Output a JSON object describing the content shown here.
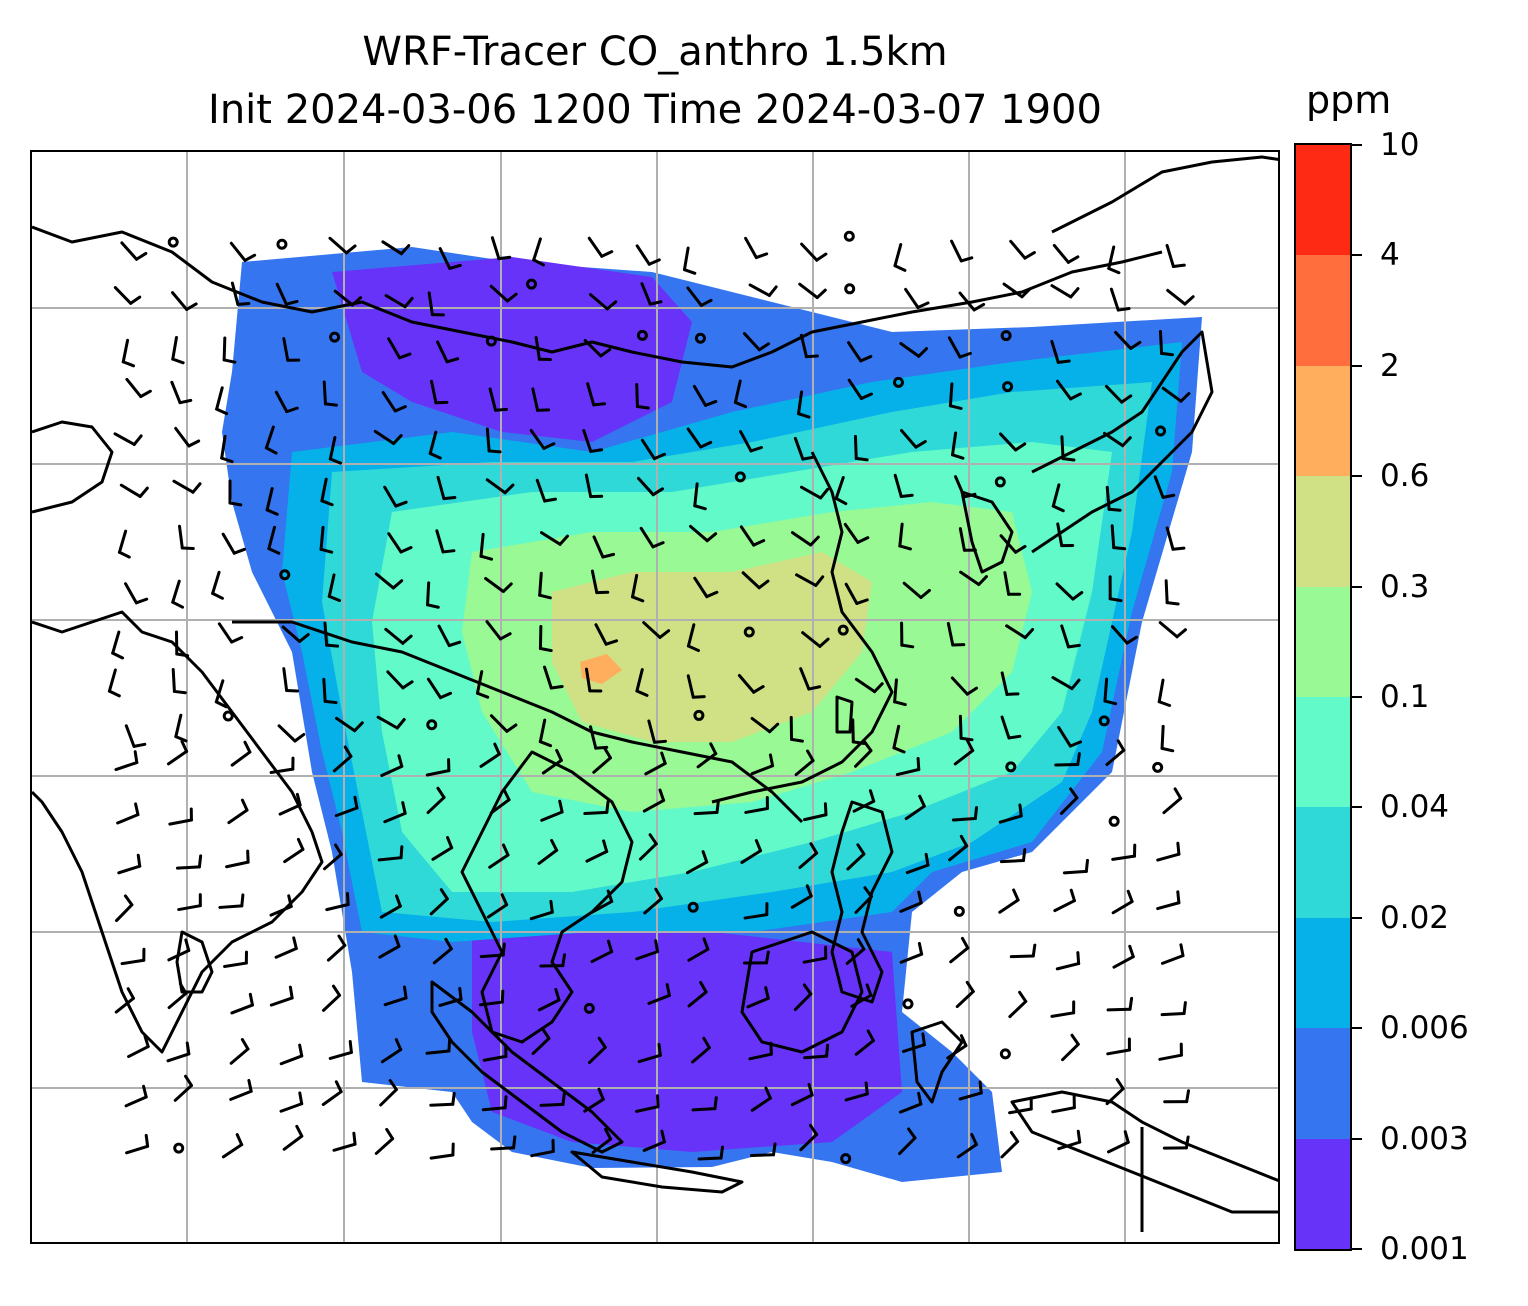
{
  "title": {
    "line1": "WRF-Tracer CO_anthro 1.5km",
    "line2": "Init 2024-03-06 1200 Time 2024-03-07 1900"
  },
  "colorbar": {
    "unit": "ppm",
    "ticks": [
      "10",
      "4",
      "2",
      "0.6",
      "0.3",
      "0.1",
      "0.04",
      "0.02",
      "0.006",
      "0.003",
      "0.001"
    ],
    "colors_top_to_bottom": [
      "#ff2a14",
      "#ff6e3c",
      "#ffae5e",
      "#cfe085",
      "#98f995",
      "#62fac8",
      "#2fd9d8",
      "#05b1e8",
      "#3575f0",
      "#6733f8"
    ]
  },
  "map": {
    "background": "#ffffff",
    "coastline_color": "#000000",
    "grid_color": "#b0b0b0",
    "field_colors": {
      "very_low": "#6733f8",
      "low": "#3575f0",
      "low_mid": "#05b1e8",
      "mid": "#2fd9d8",
      "mid_high": "#62fac8",
      "high": "#98f995",
      "peak": "#cfe085",
      "max": "#ffae5e"
    }
  }
}
